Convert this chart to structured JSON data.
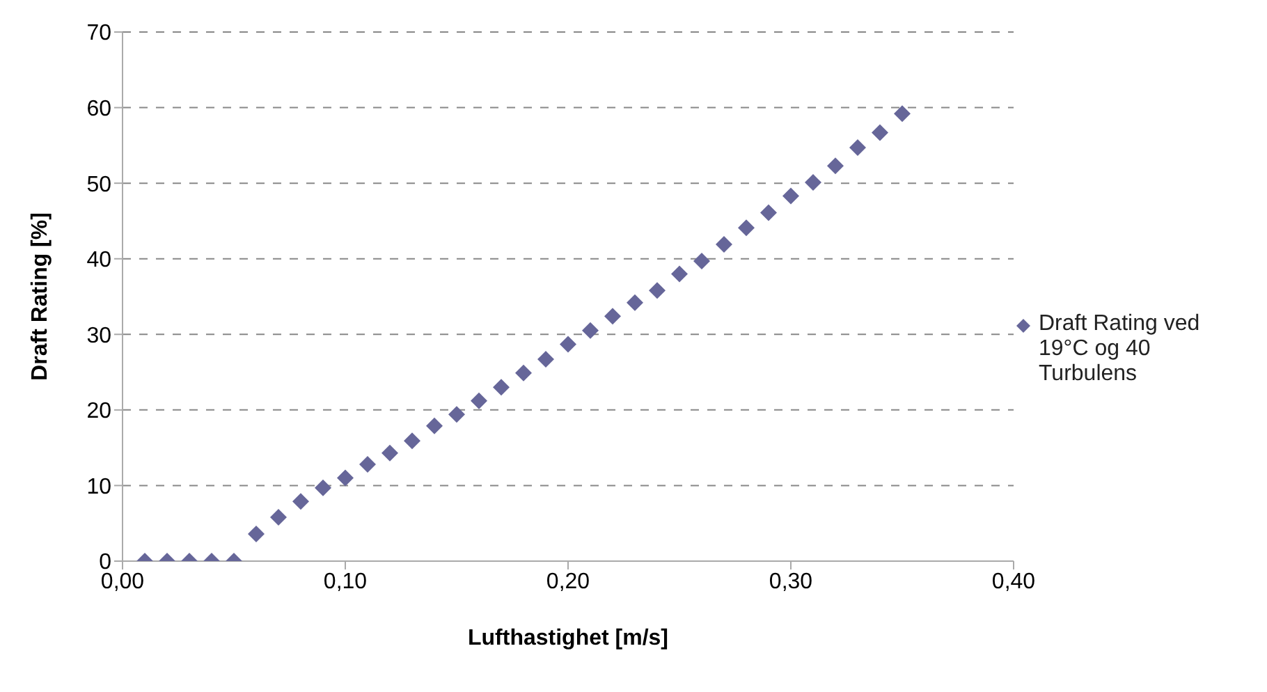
{
  "chart_data": {
    "type": "scatter",
    "xlabel": "Lufthastighet [m/s]",
    "ylabel": "Draft Rating  [%]",
    "series": [
      {
        "name": "Draft Rating ved 19°C og 40 Turbulens",
        "color": "#666699",
        "x": [
          0.01,
          0.02,
          0.03,
          0.04,
          0.05,
          0.06,
          0.07,
          0.08,
          0.09,
          0.1,
          0.11,
          0.12,
          0.13,
          0.14,
          0.15,
          0.16,
          0.17,
          0.18,
          0.19,
          0.2,
          0.21,
          0.22,
          0.23,
          0.24,
          0.25,
          0.26,
          0.27,
          0.28,
          0.29,
          0.3,
          0.31,
          0.32,
          0.33,
          0.34,
          0.35
        ],
        "values": [
          0,
          0,
          0,
          0,
          0,
          3.6,
          5.8,
          7.9,
          9.7,
          11.0,
          12.8,
          14.3,
          15.9,
          17.9,
          19.4,
          21.2,
          23.0,
          24.9,
          26.7,
          28.7,
          30.5,
          32.4,
          34.2,
          35.8,
          38.0,
          39.7,
          41.9,
          44.1,
          46.1,
          48.3,
          50.1,
          52.3,
          54.7,
          56.7,
          59.2
        ]
      }
    ],
    "xlim": [
      0,
      0.4
    ],
    "xticks": [
      {
        "value": 0,
        "label": "0,00"
      },
      {
        "value": 0.1,
        "label": "0,10"
      },
      {
        "value": 0.2,
        "label": "0,20"
      },
      {
        "value": 0.3,
        "label": "0,30"
      },
      {
        "value": 0.4,
        "label": "0,40"
      }
    ],
    "ylim": [
      0,
      70
    ],
    "yticks": [
      0,
      10,
      20,
      30,
      40,
      50,
      60,
      70
    ],
    "grid": "y",
    "legend": "right",
    "marker": "diamond"
  }
}
